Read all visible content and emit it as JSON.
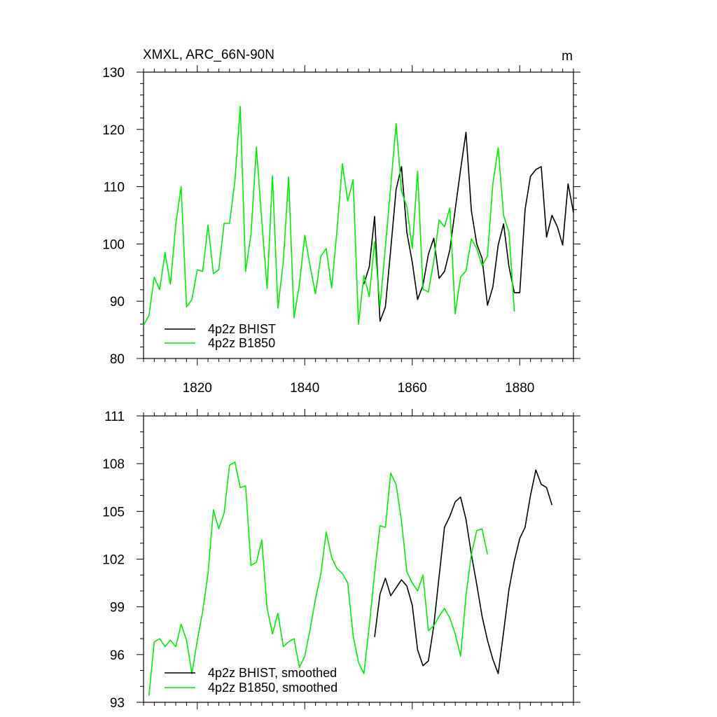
{
  "chart_data": [
    {
      "type": "line",
      "title": "XMXL, ARC_66N-90N",
      "units_label": "m",
      "xlim": [
        1810,
        1890
      ],
      "ylim": [
        80,
        130
      ],
      "x_ticks": [
        1820,
        1840,
        1860,
        1880
      ],
      "x_tick_labels": [
        "1820",
        "1840",
        "1860",
        "1880"
      ],
      "y_ticks": [
        80,
        90,
        100,
        110,
        120,
        130
      ],
      "y_tick_labels": [
        "80",
        "90",
        "100",
        "110",
        "120",
        "130"
      ],
      "legend": {
        "placement": "bottom-left",
        "entries": [
          {
            "label": "4p2z BHIST",
            "color": "#000000"
          },
          {
            "label": "4p2z B1850",
            "color": "#00ee00"
          }
        ]
      },
      "series": [
        {
          "name": "4p2z BHIST",
          "color": "#000000",
          "start_year": 1851,
          "values": [
            93.0,
            96.0,
            104.8,
            86.5,
            89.0,
            99.0,
            109.5,
            113.5,
            102.0,
            96.8,
            90.3,
            92.8,
            98.2,
            101.0,
            94.0,
            95.2,
            99.0,
            106.0,
            113.0,
            119.5,
            105.8,
            100.0,
            97.5,
            89.3,
            92.5,
            99.8,
            103.5,
            96.0,
            91.5,
            91.5,
            106.0,
            111.8,
            113.0,
            113.5,
            101.2,
            105.0,
            103.0,
            99.8,
            110.5,
            105.5
          ]
        },
        {
          "name": "4p2z B1850",
          "color": "#00ee00",
          "start_year": 1810,
          "values": [
            85.8,
            87.5,
            94.2,
            92.0,
            98.5,
            93.0,
            103.5,
            110.0,
            89.0,
            90.3,
            95.5,
            95.2,
            103.3,
            94.8,
            95.5,
            103.6,
            103.6,
            111.0,
            124.0,
            95.2,
            101.8,
            116.9,
            104.0,
            92.2,
            111.9,
            88.8,
            96.9,
            111.7,
            87.1,
            93.0,
            101.5,
            96.1,
            91.3,
            97.9,
            99.2,
            92.3,
            102.4,
            114.0,
            107.5,
            111.2,
            86.0,
            94.5,
            90.8,
            100.4,
            89.0,
            99.5,
            110.0,
            121.0,
            109.2,
            106.5,
            99.2,
            112.7,
            92.1,
            91.6,
            97.0,
            104.2,
            103.0,
            106.3,
            87.8,
            94.2,
            95.3,
            100.9,
            99.2,
            96.2,
            97.9,
            110.5,
            116.8,
            105.0,
            102.0,
            88.2
          ]
        }
      ]
    },
    {
      "type": "line",
      "title": "",
      "xlim": [
        1810,
        1890
      ],
      "ylim": [
        93,
        111
      ],
      "x_ticks": [
        1820,
        1840,
        1860,
        1880
      ],
      "y_ticks": [
        93,
        96,
        99,
        102,
        105,
        108,
        111
      ],
      "y_tick_labels": [
        "93",
        "96",
        "99",
        "102",
        "105",
        "108",
        "111"
      ],
      "legend": {
        "placement": "bottom-left",
        "entries": [
          {
            "label": "4p2z BHIST, smoothed",
            "color": "#000000"
          },
          {
            "label": "4p2z B1850, smoothed",
            "color": "#00ee00"
          }
        ]
      },
      "series": [
        {
          "name": "4p2z BHIST, smoothed",
          "color": "#000000",
          "start_year": 1853,
          "values": [
            97.1,
            99.8,
            100.8,
            99.7,
            100.2,
            100.7,
            100.3,
            99.1,
            96.3,
            95.3,
            95.6,
            97.8,
            100.9,
            104.0,
            104.7,
            105.6,
            105.9,
            104.5,
            102.3,
            100.4,
            98.4,
            96.9,
            95.7,
            94.8,
            97.4,
            100.1,
            101.9,
            103.3,
            104.0,
            106.0,
            107.6,
            106.7,
            106.5,
            105.4
          ]
        },
        {
          "name": "4p2z B1850, smoothed",
          "color": "#00ee00",
          "start_year": 1811,
          "values": [
            93.4,
            96.8,
            97.0,
            96.5,
            96.9,
            96.5,
            97.9,
            96.9,
            94.8,
            96.9,
            98.7,
            101.1,
            105.1,
            103.9,
            104.9,
            107.9,
            108.1,
            106.5,
            106.6,
            101.6,
            101.8,
            103.2,
            98.9,
            97.3,
            98.6,
            96.5,
            96.8,
            97.0,
            95.2,
            95.9,
            97.6,
            99.5,
            101.1,
            103.7,
            102.1,
            101.4,
            101.1,
            100.5,
            97.2,
            95.5,
            94.8,
            97.8,
            101.1,
            104.1,
            104.0,
            107.4,
            106.7,
            104.4,
            101.2,
            100.5,
            100.0,
            101.0,
            97.5,
            97.8,
            98.4,
            98.9,
            98.3,
            97.3,
            95.9,
            99.7,
            102.3,
            103.8,
            103.9,
            102.3
          ]
        }
      ]
    }
  ]
}
